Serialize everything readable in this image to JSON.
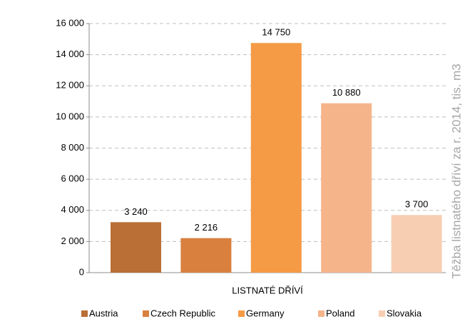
{
  "chart_data": {
    "type": "bar",
    "ylabel": "Těžba listnatého dříví za r. 2014, tis. m3",
    "categories": [
      "LISTNATÉ DŘÍVÍ"
    ],
    "series": [
      {
        "name": "Austria",
        "color": "#b96f36",
        "values": [
          3240
        ],
        "value_labels": [
          "3 240"
        ]
      },
      {
        "name": "Czech Republic",
        "color": "#d9803f",
        "values": [
          2216
        ],
        "value_labels": [
          "2 216"
        ]
      },
      {
        "name": "Germany",
        "color": "#f59a45",
        "values": [
          14750
        ],
        "value_labels": [
          "14 750"
        ]
      },
      {
        "name": "Poland",
        "color": "#f6b48b",
        "values": [
          10880
        ],
        "value_labels": [
          "10 880"
        ]
      },
      {
        "name": "Slovakia",
        "color": "#f8ceb3",
        "values": [
          3700
        ],
        "value_labels": [
          "3 700"
        ]
      }
    ],
    "ylim": [
      0,
      16000
    ],
    "yticks": [
      0,
      {
        "value": 2000,
        "label": "2 000"
      },
      {
        "value": 4000,
        "label": "4 000"
      },
      {
        "value": 6000,
        "label": "6 000"
      },
      {
        "value": 8000,
        "label": "8 000"
      },
      {
        "value": 10000,
        "label": "10 000"
      },
      {
        "value": 12000,
        "label": "12 000"
      },
      {
        "value": 14000,
        "label": "14 000"
      },
      {
        "value": 16000,
        "label": "16 000"
      }
    ],
    "grid": true,
    "legend": "bottom"
  }
}
